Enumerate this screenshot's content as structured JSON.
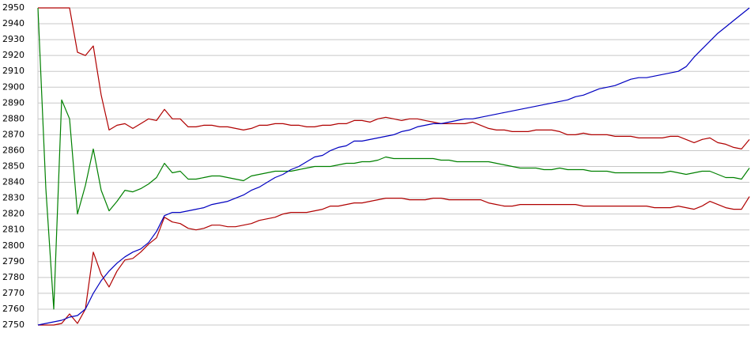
{
  "chart_data": {
    "type": "line",
    "categories": [
      null,
      null,
      null,
      null,
      null,
      null,
      null,
      null,
      null,
      null,
      null,
      null,
      null,
      null,
      null,
      null,
      null,
      null,
      null,
      null,
      null,
      null,
      null,
      null,
      null,
      null,
      null,
      null,
      null,
      null,
      null,
      null,
      null,
      null,
      null,
      null,
      null,
      null,
      null,
      null,
      null,
      null,
      null,
      null,
      null,
      null,
      null,
      null,
      null,
      null,
      null,
      null,
      null,
      null,
      null,
      null,
      null,
      null,
      null,
      null,
      null,
      null,
      null,
      null,
      null,
      null,
      null,
      null,
      null,
      null,
      null,
      null,
      null,
      null,
      null,
      null,
      null,
      null,
      null,
      null,
      null,
      null,
      null,
      null,
      null,
      null,
      null,
      null,
      null,
      null,
      null
    ],
    "series": [
      {
        "color": "#b00000",
        "values": [
          2950,
          2950,
          2950,
          2950,
          2950,
          2922,
          2920,
          2926,
          2895,
          2873,
          2876,
          2877,
          2874,
          2877,
          2880,
          2879,
          2886,
          2880,
          2880,
          2875,
          2875,
          2876,
          2876,
          2875,
          2875,
          2874,
          2873,
          2874,
          2876,
          2876,
          2877,
          2877,
          2876,
          2876,
          2875,
          2875,
          2876,
          2876,
          2877,
          2877,
          2879,
          2879,
          2878,
          2880,
          2881,
          2880,
          2879,
          2880,
          2880,
          2879,
          2878,
          2877,
          2877,
          2877,
          2877,
          2878,
          2876,
          2874,
          2873,
          2873,
          2872,
          2872,
          2872,
          2873,
          2873,
          2873,
          2872,
          2870,
          2870,
          2871,
          2870,
          2870,
          2870,
          2869,
          2869,
          2869,
          2868,
          2868,
          2868,
          2868,
          2869,
          2869,
          2867,
          2865,
          2867,
          2868,
          2865,
          2864,
          2862,
          2861,
          2867
        ]
      },
      {
        "color": "#008000",
        "values": [
          2950,
          2836,
          2760,
          2892,
          2880,
          2820,
          2838,
          2861,
          2835,
          2822,
          2828,
          2835,
          2834,
          2836,
          2839,
          2843,
          2852,
          2846,
          2847,
          2842,
          2842,
          2843,
          2844,
          2844,
          2843,
          2842,
          2841,
          2844,
          2845,
          2846,
          2847,
          2847,
          2847,
          2848,
          2849,
          2850,
          2850,
          2850,
          2851,
          2852,
          2852,
          2853,
          2853,
          2854,
          2856,
          2855,
          2855,
          2855,
          2855,
          2855,
          2855,
          2854,
          2854,
          2853,
          2853,
          2853,
          2853,
          2853,
          2852,
          2851,
          2850,
          2849,
          2849,
          2849,
          2848,
          2848,
          2849,
          2848,
          2848,
          2848,
          2847,
          2847,
          2847,
          2846,
          2846,
          2846,
          2846,
          2846,
          2846,
          2846,
          2847,
          2846,
          2845,
          2846,
          2847,
          2847,
          2845,
          2843,
          2843,
          2842,
          2849
        ]
      },
      {
        "color": "#b00000",
        "values": [
          2750,
          2750,
          2750,
          2751,
          2757,
          2751,
          2760,
          2796,
          2782,
          2774,
          2784,
          2791,
          2792,
          2796,
          2801,
          2805,
          2818,
          2815,
          2814,
          2811,
          2810,
          2811,
          2813,
          2813,
          2812,
          2812,
          2813,
          2814,
          2816,
          2817,
          2818,
          2820,
          2821,
          2821,
          2821,
          2822,
          2823,
          2825,
          2825,
          2826,
          2827,
          2827,
          2828,
          2829,
          2830,
          2830,
          2830,
          2829,
          2829,
          2829,
          2830,
          2830,
          2829,
          2829,
          2829,
          2829,
          2829,
          2827,
          2826,
          2825,
          2825,
          2826,
          2826,
          2826,
          2826,
          2826,
          2826,
          2826,
          2826,
          2825,
          2825,
          2825,
          2825,
          2825,
          2825,
          2825,
          2825,
          2825,
          2824,
          2824,
          2824,
          2825,
          2824,
          2823,
          2825,
          2828,
          2826,
          2824,
          2823,
          2823,
          2831
        ]
      },
      {
        "color": "#0000c0",
        "values": [
          2750,
          2751,
          2752,
          2753,
          2755,
          2756,
          2760,
          2770,
          2778,
          2784,
          2789,
          2793,
          2796,
          2798,
          2802,
          2809,
          2819,
          2821,
          2821,
          2822,
          2823,
          2824,
          2826,
          2827,
          2828,
          2830,
          2832,
          2835,
          2837,
          2840,
          2843,
          2845,
          2848,
          2850,
          2853,
          2856,
          2857,
          2860,
          2862,
          2863,
          2866,
          2866,
          2867,
          2868,
          2869,
          2870,
          2872,
          2873,
          2875,
          2876,
          2877,
          2877,
          2878,
          2879,
          2880,
          2880,
          2881,
          2882,
          2883,
          2884,
          2885,
          2886,
          2887,
          2888,
          2889,
          2890,
          2891,
          2892,
          2894,
          2895,
          2897,
          2899,
          2900,
          2901,
          2903,
          2905,
          2906,
          2906,
          2907,
          2908,
          2909,
          2910,
          2913,
          2919,
          2924,
          2929,
          2934,
          2938,
          2942,
          2946,
          2950
        ]
      }
    ],
    "ylim": [
      2750,
      2950
    ],
    "yticks": [
      2750,
      2760,
      2770,
      2780,
      2790,
      2800,
      2810,
      2820,
      2830,
      2840,
      2850,
      2860,
      2870,
      2880,
      2890,
      2900,
      2910,
      2920,
      2930,
      2940,
      2950
    ],
    "grid": true
  }
}
